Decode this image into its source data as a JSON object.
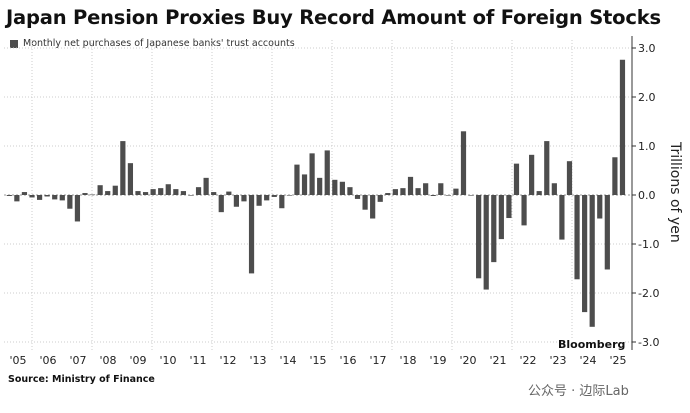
{
  "chart_data": {
    "type": "bar",
    "title": "Japan Pension Proxies Buy Record Amount of Foreign Stocks",
    "legend": [
      "Monthly net purchases of Japanese banks' trust accounts"
    ],
    "ylabel": "Trillions of yen",
    "ylim": [
      -3.0,
      3.0
    ],
    "yticks": [
      "3.0",
      "2.0",
      "1.0",
      "0.0",
      "-1.0",
      "-2.0",
      "-3.0"
    ],
    "ytick_values": [
      3,
      2,
      1,
      0,
      -1,
      -2,
      -3
    ],
    "xtick_labels": [
      "'05",
      "'06",
      "'07",
      "'08",
      "'09",
      "'10",
      "'11",
      "'12",
      "'13",
      "'14",
      "'15",
      "'16",
      "'17",
      "'18",
      "'19",
      "'20",
      "'21",
      "'22",
      "'23",
      "'24",
      "'25"
    ],
    "values": [
      -0.02,
      -0.13,
      0.06,
      -0.05,
      -0.1,
      -0.03,
      -0.09,
      -0.11,
      -0.28,
      -0.54,
      0.04,
      0.01,
      0.2,
      0.08,
      0.19,
      1.1,
      0.65,
      0.08,
      0.06,
      0.12,
      0.14,
      0.22,
      0.12,
      0.08,
      0.0,
      0.16,
      0.35,
      0.06,
      -0.35,
      0.07,
      -0.24,
      -0.13,
      -1.6,
      -0.22,
      -0.11,
      -0.04,
      -0.27,
      -0.01,
      0.62,
      0.42,
      0.85,
      0.35,
      0.91,
      0.31,
      0.27,
      0.16,
      -0.08,
      -0.3,
      -0.48,
      -0.14,
      0.04,
      0.12,
      0.14,
      0.37,
      0.14,
      0.24,
      -0.02,
      0.24,
      -0.01,
      0.13,
      1.3,
      -0.01,
      -1.7,
      -1.93,
      -1.37,
      -0.9,
      -0.47,
      0.64,
      -0.62,
      0.82,
      0.08,
      1.1,
      0.24,
      -0.91,
      0.69,
      -1.72,
      -2.39,
      -2.69,
      -0.48,
      -1.52,
      0.77,
      2.76
    ],
    "grid": true,
    "legend_position": "top-left",
    "bar_color": "#4d4d4d"
  },
  "source": "Source: Ministry of Finance",
  "brand": "Bloomberg",
  "watermark": "公众号 · 边际Lab"
}
